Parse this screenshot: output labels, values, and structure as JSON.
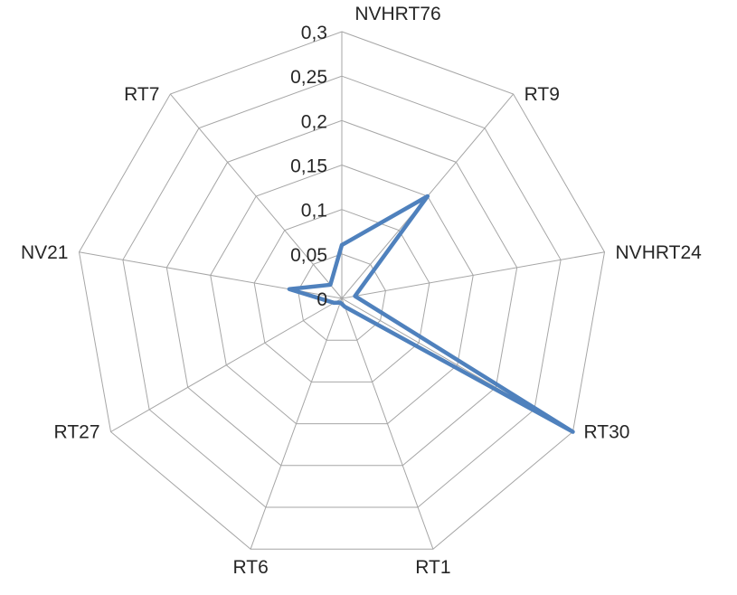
{
  "chart_data": {
    "type": "radar",
    "title": "",
    "categories": [
      "NVHRT76",
      "RT9",
      "NVHRT24",
      "RT30",
      "RT1",
      "RT6",
      "RT27",
      "NV21",
      "RT7"
    ],
    "values": [
      0.06,
      0.15,
      0.015,
      0.3,
      0.01,
      0.005,
      0.01,
      0.06,
      0.02
    ],
    "ticks": [
      0,
      0.05,
      0.1,
      0.15,
      0.2,
      0.25,
      0.3
    ],
    "tick_labels": [
      "0",
      "0,05",
      "0,1",
      "0,15",
      "0,2",
      "0,25",
      "0,3"
    ],
    "ylim": [
      0,
      0.3
    ],
    "grid": true,
    "legend": "none",
    "colors": {
      "series": "#4f81bd",
      "gridline": "#a6a6a6",
      "text": "#262626",
      "background": "#ffffff"
    },
    "series_stroke_width": 4.5
  }
}
